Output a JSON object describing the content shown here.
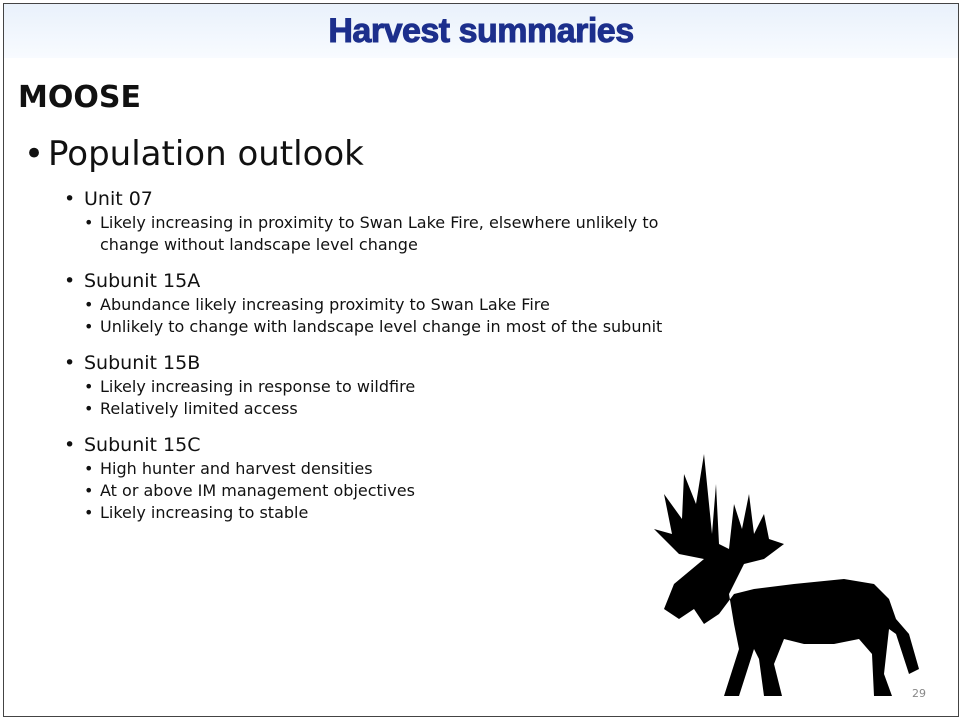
{
  "header": {
    "title": "Harvest summaries"
  },
  "section": "MOOSE",
  "bullet": "Population outlook",
  "items": [
    {
      "label": "Unit 07",
      "details": [
        "Likely increasing in proximity to Swan Lake Fire, elsewhere unlikely to change without landscape level change"
      ]
    },
    {
      "label": "Subunit 15A",
      "details": [
        "Abundance likely increasing proximity to Swan Lake Fire",
        "Unlikely to change with landscape level change in most of the subunit"
      ]
    },
    {
      "label": "Subunit 15B",
      "details": [
        "Likely increasing in response to wildfire",
        "Relatively limited access"
      ]
    },
    {
      "label": "Subunit 15C",
      "details": [
        "High hunter and harvest densities",
        "At or above IM management objectives",
        "Likely increasing to stable"
      ]
    }
  ],
  "page_number": "29"
}
